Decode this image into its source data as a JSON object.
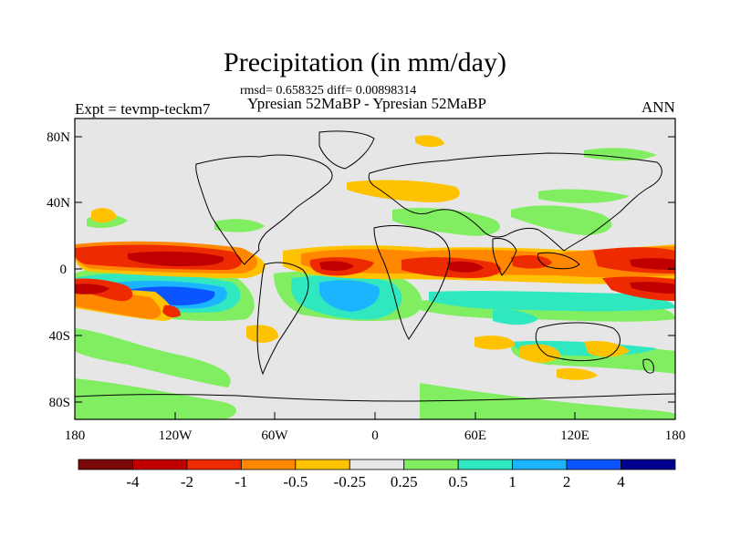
{
  "title": "Precipitation (in mm/day)",
  "stats": "rmsd= 0.658325 diff= 0.00898314",
  "subtitle": "Ypresian  52MaBP - Ypresian  52MaBP",
  "left_label": "Expt = tevmp-teckm7",
  "right_label": "ANN",
  "map": {
    "y_ticks": [
      "80N",
      "40N",
      "0",
      "40S",
      "80S"
    ],
    "x_ticks": [
      "180",
      "120W",
      "60W",
      "0",
      "60E",
      "120E",
      "180"
    ]
  },
  "colorbar": {
    "colors": [
      "#7a0a0a",
      "#c00000",
      "#ee2a00",
      "#ff8800",
      "#ffc200",
      "#e6e6e6",
      "#80ee60",
      "#30e8c0",
      "#1cb4ff",
      "#0a55ff",
      "#000090"
    ],
    "labels": [
      "-4",
      "-2",
      "-1",
      "-0.5",
      "-0.25",
      "0.25",
      "0.5",
      "1",
      "2",
      "4"
    ]
  },
  "palette": {
    "neutral": "#e6e6e6",
    "land_outline": "#000000"
  }
}
